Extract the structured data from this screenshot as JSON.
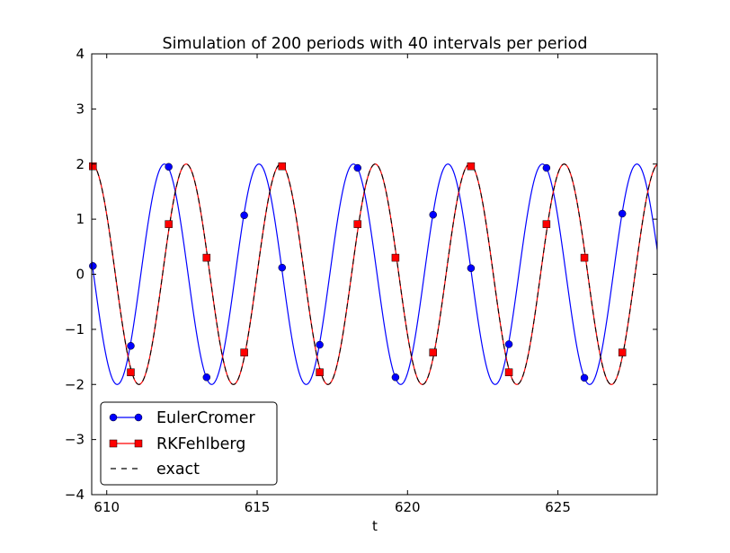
{
  "chart_data": {
    "type": "line",
    "title": "Simulation of 200 periods with 40 intervals per period",
    "xlabel": "t",
    "ylabel": "",
    "xlim": [
      609.5,
      628.3
    ],
    "ylim": [
      -4,
      4
    ],
    "x_ticks": [
      610,
      615,
      620,
      625
    ],
    "x_tick_labels": [
      "610",
      "615",
      "620",
      "625"
    ],
    "y_ticks": [
      -4,
      -3,
      -2,
      -1,
      0,
      1,
      2,
      3,
      4
    ],
    "y_tick_labels": [
      "−4",
      "−3",
      "−2",
      "−1",
      "0",
      "1",
      "2",
      "3",
      "4"
    ],
    "legend_position": "lower-left",
    "series": [
      {
        "name": "EulerCromer",
        "color": "#0000ff",
        "marker": "circle",
        "amplitude": 2,
        "period": 3.1416,
        "phase_point": {
          "t": 615.06,
          "y": 2
        },
        "markers": [
          {
            "t": 609.54,
            "y": 0.15
          },
          {
            "t": 610.8,
            "y": -1.3
          },
          {
            "t": 612.06,
            "y": 1.95
          },
          {
            "t": 613.32,
            "y": -1.87
          },
          {
            "t": 614.57,
            "y": 1.07
          },
          {
            "t": 615.83,
            "y": 0.12
          },
          {
            "t": 617.08,
            "y": -1.28
          },
          {
            "t": 618.34,
            "y": 1.93
          },
          {
            "t": 619.6,
            "y": -1.87
          },
          {
            "t": 620.85,
            "y": 1.08
          },
          {
            "t": 622.11,
            "y": 0.11
          },
          {
            "t": 623.37,
            "y": -1.27
          },
          {
            "t": 624.62,
            "y": 1.93
          },
          {
            "t": 625.88,
            "y": -1.88
          },
          {
            "t": 627.14,
            "y": 1.1
          }
        ]
      },
      {
        "name": "RKFehlberg",
        "color": "#ff0000",
        "marker": "square",
        "amplitude": 2,
        "period": 3.1416,
        "phase_point": {
          "t": 609.5,
          "y": 2
        },
        "markers": [
          {
            "t": 609.54,
            "y": 1.96
          },
          {
            "t": 610.8,
            "y": -1.78
          },
          {
            "t": 612.06,
            "y": 0.91
          },
          {
            "t": 613.32,
            "y": 0.3
          },
          {
            "t": 614.57,
            "y": -1.42
          },
          {
            "t": 615.83,
            "y": 1.96
          },
          {
            "t": 617.08,
            "y": -1.78
          },
          {
            "t": 618.34,
            "y": 0.91
          },
          {
            "t": 619.6,
            "y": 0.3
          },
          {
            "t": 620.85,
            "y": -1.42
          },
          {
            "t": 622.11,
            "y": 1.96
          },
          {
            "t": 623.37,
            "y": -1.78
          },
          {
            "t": 624.62,
            "y": 0.91
          },
          {
            "t": 625.88,
            "y": 0.3
          },
          {
            "t": 627.14,
            "y": -1.42
          }
        ]
      },
      {
        "name": "exact",
        "color": "#000000",
        "style": "dashed",
        "amplitude": 2,
        "period": 3.1416,
        "phase_point": {
          "t": 609.5,
          "y": 2
        }
      }
    ]
  }
}
